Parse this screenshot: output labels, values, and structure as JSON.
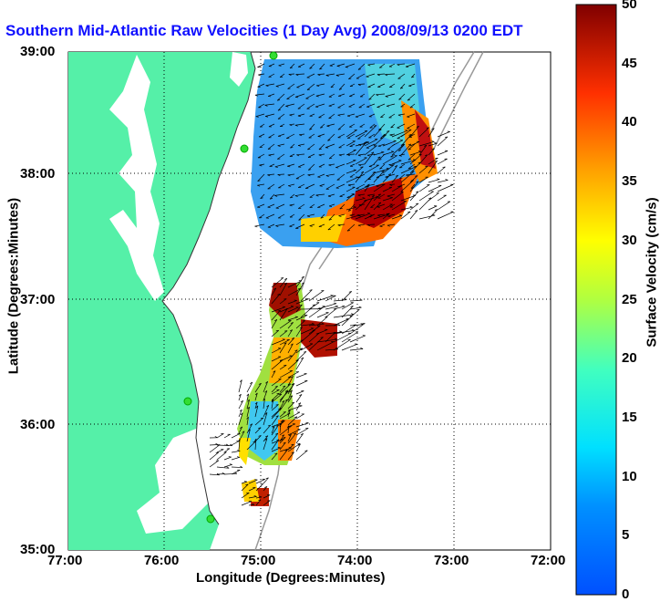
{
  "title": "Southern Mid-Atlantic Raw Velocities (1 Day Avg) 2008/09/13 0200 EDT",
  "axes": {
    "xlabel": "Longitude (Degrees:Minutes)",
    "ylabel": "Latitude (Degrees:Minutes)",
    "xticks": [
      "77:00",
      "76:00",
      "75:00",
      "74:00",
      "73:00",
      "72:00"
    ],
    "yticks": [
      "39:00",
      "38:00",
      "37:00",
      "36:00",
      "35:00"
    ]
  },
  "colorbar": {
    "label": "Surface Velocity (cm/s)",
    "ticks": [
      "50",
      "45",
      "40",
      "35",
      "30",
      "25",
      "20",
      "15",
      "10",
      "5",
      "0"
    ],
    "range": [
      0,
      50
    ]
  },
  "colors": {
    "land": "#55f0a8",
    "title": "#1010ff",
    "station": "#33dd33"
  }
}
